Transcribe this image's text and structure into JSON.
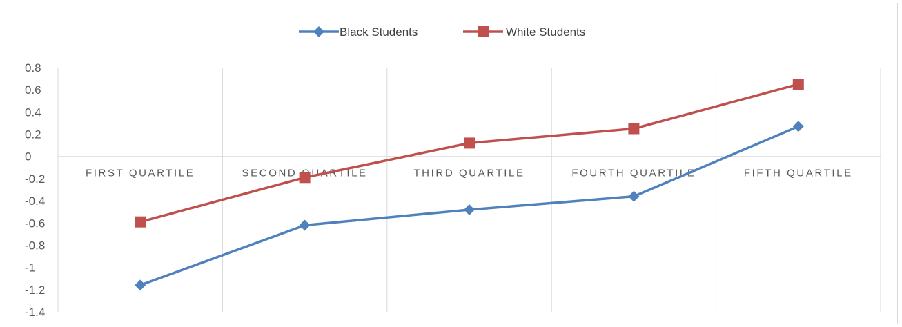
{
  "chart_data": {
    "type": "line",
    "categories": [
      "FIRST QUARTILE",
      "SECOND QUARTILE",
      "THIRD QUARTILE",
      "FOURTH QUARTILE",
      "FIFTH QUARTILE"
    ],
    "series": [
      {
        "name": "Black Students",
        "values": [
          -1.16,
          -0.62,
          -0.48,
          -0.36,
          0.27
        ],
        "color": "#4f81bd",
        "marker": "diamond"
      },
      {
        "name": "White Students",
        "values": [
          -0.59,
          -0.19,
          0.12,
          0.25,
          0.65
        ],
        "color": "#c0504d",
        "marker": "square"
      }
    ],
    "ylim": [
      -1.4,
      0.8
    ],
    "yticks": [
      "0.8",
      "0.6",
      "0.4",
      "0.2",
      "0",
      "-0.2",
      "-0.4",
      "-0.6",
      "-0.8",
      "-1",
      "-1.2",
      "-1.4"
    ],
    "ytick_values": [
      0.8,
      0.6,
      0.4,
      0.2,
      0,
      -0.2,
      -0.4,
      -0.6,
      -0.8,
      -1,
      -1.2,
      -1.4
    ],
    "grid": "vertical",
    "legend_position": "top-center",
    "gridline_color": "#d9d9d9",
    "title": "",
    "xlabel": "",
    "ylabel": ""
  }
}
